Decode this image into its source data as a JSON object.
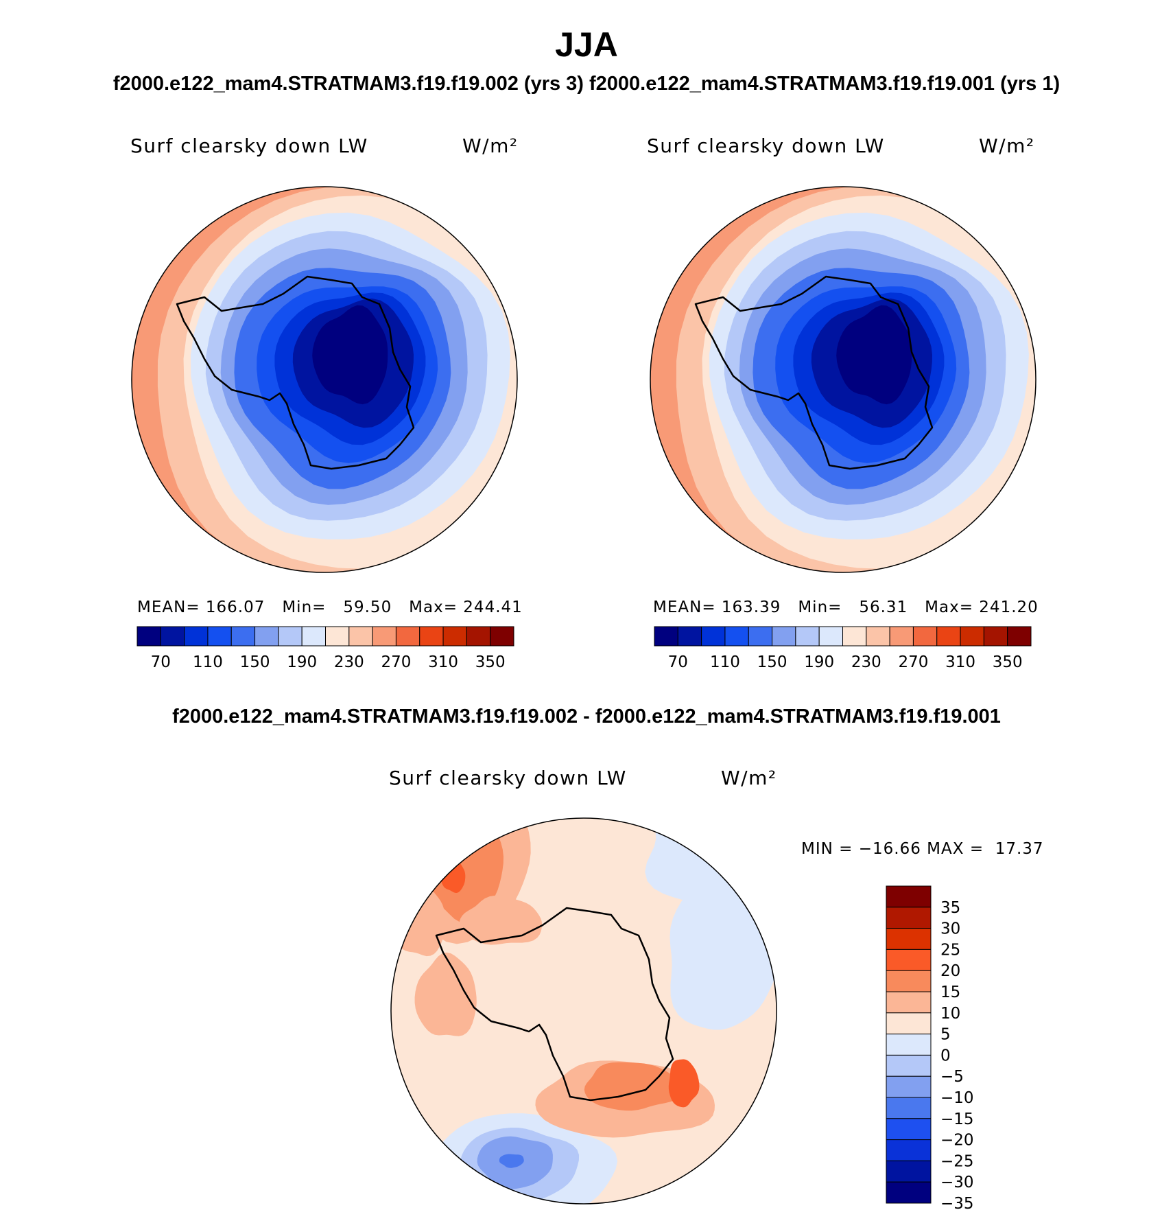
{
  "chart_data": [
    {
      "type": "heatmap",
      "projection": "south-polar-stereographic",
      "season": "JJA",
      "case": "f2000.e122_mam4.STRATMAM3.f19.f19.002 (yrs 3)",
      "variable": "Surf clearsky down LW",
      "units": "W/m²",
      "stats": {
        "mean_label": "MEAN=",
        "mean": "166.07",
        "min_label": "Min=",
        "min": "59.50",
        "max_label": "Max=",
        "max": "244.41"
      },
      "colorbar": {
        "colors": [
          "#00007f",
          "#0014a0",
          "#0032d8",
          "#1450f0",
          "#3c6ef0",
          "#82a0f0",
          "#b4c8f8",
          "#dce8fc",
          "#fde6d6",
          "#fbc4a8",
          "#f89a76",
          "#f2683f",
          "#ea4414",
          "#cc2c00",
          "#a41400",
          "#7e0000"
        ],
        "tick_labels": [
          "70",
          "110",
          "150",
          "190",
          "230",
          "270",
          "310",
          "350"
        ]
      },
      "contour_levels": [
        60,
        80,
        100,
        120,
        140,
        160,
        180,
        200,
        220,
        240
      ]
    },
    {
      "type": "heatmap",
      "projection": "south-polar-stereographic",
      "season": "JJA",
      "case": "f2000.e122_mam4.STRATMAM3.f19.f19.001 (yrs 1)",
      "variable": "Surf clearsky down LW",
      "units": "W/m²",
      "stats": {
        "mean_label": "MEAN=",
        "mean": "163.39",
        "min_label": "Min=",
        "min": "56.31",
        "max_label": "Max=",
        "max": "241.20"
      },
      "colorbar": {
        "colors": [
          "#00007f",
          "#0014a0",
          "#0032d8",
          "#1450f0",
          "#3c6ef0",
          "#82a0f0",
          "#b4c8f8",
          "#dce8fc",
          "#fde6d6",
          "#fbc4a8",
          "#f89a76",
          "#f2683f",
          "#ea4414",
          "#cc2c00",
          "#a41400",
          "#7e0000"
        ],
        "tick_labels": [
          "70",
          "110",
          "150",
          "190",
          "230",
          "270",
          "310",
          "350"
        ]
      },
      "contour_levels": [
        60,
        80,
        100,
        120,
        140,
        160,
        180,
        200,
        220,
        240
      ]
    },
    {
      "type": "heatmap",
      "projection": "south-polar-stereographic",
      "season": "JJA",
      "case": "f2000.e122_mam4.STRATMAM3.f19.f19.002 - f2000.e122_mam4.STRATMAM3.f19.f19.001",
      "variable": "Surf clearsky down LW",
      "units": "W/m²",
      "stats": {
        "min_label": "MIN =",
        "min": "−16.66",
        "max_label": "MAX =",
        "max": "17.37"
      },
      "colorbar": {
        "colors": [
          "#7e0000",
          "#b01800",
          "#dc3200",
          "#fa5a28",
          "#f88a5c",
          "#fbb696",
          "#fde6d6",
          "#dce8fc",
          "#b4c8f8",
          "#82a0f0",
          "#4a78ee",
          "#1e50f0",
          "#0a32d8",
          "#0014a0",
          "#00007f"
        ],
        "tick_labels": [
          "35",
          "30",
          "25",
          "20",
          "15",
          "10",
          "5",
          "0",
          "−5",
          "−10",
          "−15",
          "−20",
          "−25",
          "−30",
          "−35"
        ]
      }
    }
  ],
  "page": {
    "title": "JJA",
    "subtitle_top": "f2000.e122_mam4.STRATMAM3.f19.f19.002 (yrs 3)  f2000.e122_mam4.STRATMAM3.f19.f19.001 (yrs 1)",
    "subtitle_diff": "f2000.e122_mam4.STRATMAM3.f19.f19.002 - f2000.e122_mam4.STRATMAM3.f19.f19.001"
  }
}
